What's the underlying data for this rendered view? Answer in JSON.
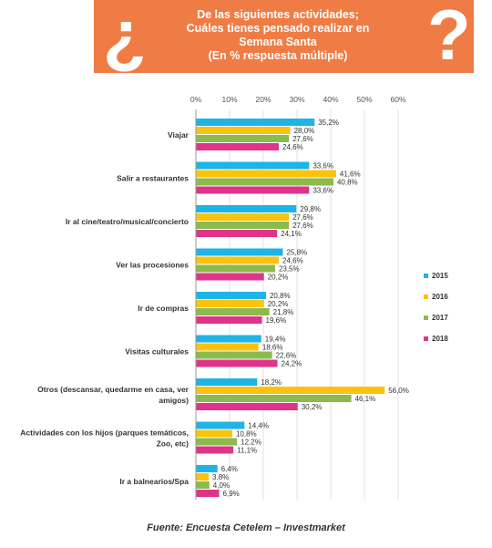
{
  "header": {
    "lines": [
      "De las siguientes actividades;",
      "Cuáles tienes pensado realizar en",
      "Semana Santa",
      "(En % respuesta múltiple)"
    ],
    "accent_color": "#f07c45"
  },
  "source": "Fuente: Encuesta Cetelem – Investmarket",
  "chart_data": {
    "type": "bar",
    "orientation": "horizontal",
    "title": "",
    "xlabel": "",
    "ylabel": "",
    "xlim": [
      0,
      60
    ],
    "x_ticks": [
      "0%",
      "10%",
      "20%",
      "30%",
      "40%",
      "50%",
      "60%"
    ],
    "x_tick_values": [
      0,
      10,
      20,
      30,
      40,
      50,
      60
    ],
    "grid": true,
    "legend_position": "right",
    "categories": [
      [
        "Viajar"
      ],
      [
        "Salir a restaurantes"
      ],
      [
        "Ir al cine/teatro/musical/concierto"
      ],
      [
        "Ver las procesiones"
      ],
      [
        "Ir de compras"
      ],
      [
        "Visitas culturales"
      ],
      [
        "Otros (descansar, quedarme en casa, ver",
        "amigos)"
      ],
      [
        "Actividades con los hijos (parques temáticos,",
        "Zoo, etc)"
      ],
      [
        "Ir a balnearios/Spa"
      ]
    ],
    "series": [
      {
        "name": "2015",
        "color": "#1eb4e6",
        "values": [
          35.2,
          33.6,
          29.8,
          25.8,
          20.8,
          19.4,
          18.2,
          14.4,
          6.4
        ],
        "labels": [
          "35,2%",
          "33,6%",
          "29,8%",
          "25,8%",
          "20,8%",
          "19,4%",
          "18,2%",
          "14,4%",
          "6,4%"
        ]
      },
      {
        "name": "2016",
        "color": "#fcc30c",
        "values": [
          28.0,
          41.6,
          27.6,
          24.6,
          20.2,
          18.6,
          56.0,
          10.8,
          3.8
        ],
        "labels": [
          "28,0%",
          "41,6%",
          "27,6%",
          "24,6%",
          "20,2%",
          "18,6%",
          "56,0%",
          "10,8%",
          "3,8%"
        ]
      },
      {
        "name": "2017",
        "color": "#8cba4c",
        "values": [
          27.6,
          40.8,
          27.6,
          23.5,
          21.8,
          22.6,
          46.1,
          12.2,
          4.0
        ],
        "labels": [
          "27,6%",
          "40,8%",
          "27,6%",
          "23,5%",
          "21,8%",
          "22,6%",
          "46,1%",
          "12,2%",
          "4,0%"
        ]
      },
      {
        "name": "2018",
        "color": "#e0348a",
        "values": [
          24.6,
          33.6,
          24.1,
          20.2,
          19.6,
          24.2,
          30.2,
          11.1,
          6.9
        ],
        "labels": [
          "24,6%",
          "33,6%",
          "24,1%",
          "20,2%",
          "19,6%",
          "24,2%",
          "30,2%",
          "11,1%",
          "6,9%"
        ]
      }
    ]
  }
}
